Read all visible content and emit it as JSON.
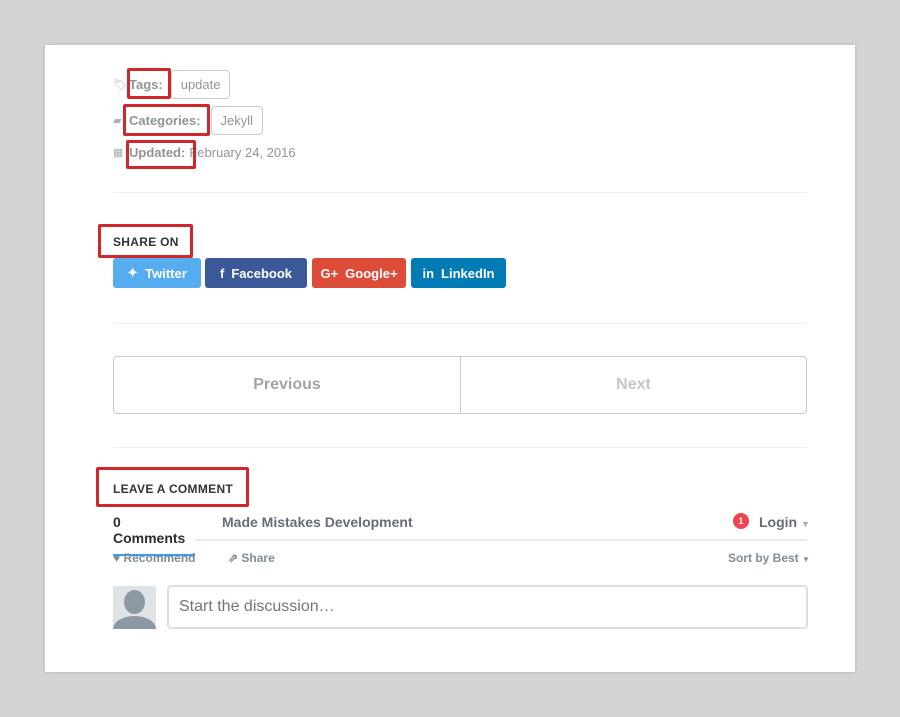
{
  "meta": {
    "tags_label": "Tags:",
    "tag": "update",
    "categories_label": "Categories:",
    "category": "Jekyll",
    "updated_label": "Updated:",
    "updated_date": "February 24, 2016"
  },
  "share": {
    "heading": "SHARE ON",
    "buttons": [
      {
        "label": "Twitter",
        "color": "#55acee",
        "icon": "twitter-icon"
      },
      {
        "label": "Facebook",
        "color": "#3b5998",
        "icon": "facebook-icon"
      },
      {
        "label": "Google+",
        "color": "#dd4b39",
        "icon": "google-plus-icon"
      },
      {
        "label": "LinkedIn",
        "color": "#007bb6",
        "icon": "linkedin-icon"
      }
    ]
  },
  "pagination": {
    "previous": "Previous",
    "next": "Next"
  },
  "comments": {
    "heading": "LEAVE A COMMENT",
    "tab_count": "0 Comments",
    "tab_site": "Made Mistakes Development",
    "notification_count": "1",
    "login": "Login",
    "recommend": "Recommend",
    "share": "Share",
    "sort": "Sort by Best",
    "placeholder": "Start the discussion…"
  },
  "colors": {
    "annotation": "#d1262c",
    "accent": "#2e9fff"
  }
}
